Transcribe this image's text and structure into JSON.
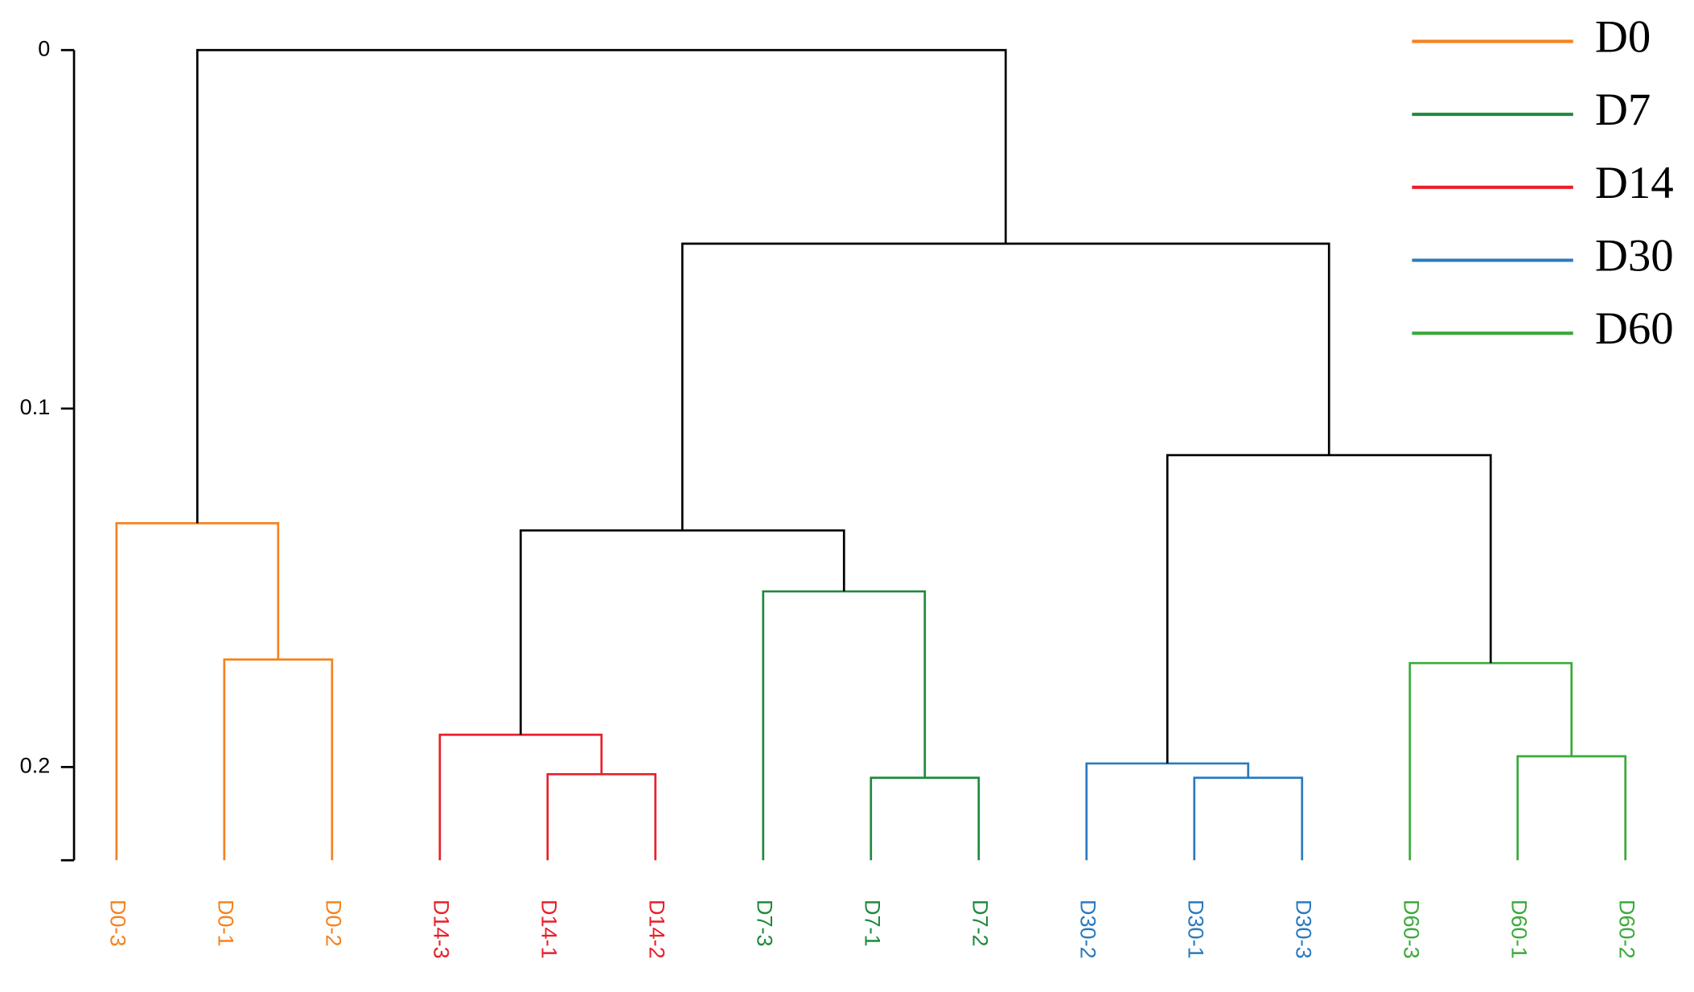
{
  "chart_data": {
    "type": "dendrogram",
    "ylim": [
      0,
      0.226
    ],
    "yticks": [
      0,
      0.1,
      0.2
    ],
    "leaves": [
      {
        "name": "D0-3",
        "color": "#f5821f"
      },
      {
        "name": "D0-1",
        "color": "#f5821f"
      },
      {
        "name": "D0-2",
        "color": "#f5821f"
      },
      {
        "name": "D14-3",
        "color": "#e8202a"
      },
      {
        "name": "D14-1",
        "color": "#e8202a"
      },
      {
        "name": "D14-2",
        "color": "#e8202a"
      },
      {
        "name": "D7-3",
        "color": "#1e8a3c"
      },
      {
        "name": "D7-1",
        "color": "#1e8a3c"
      },
      {
        "name": "D7-2",
        "color": "#1e8a3c"
      },
      {
        "name": "D30-2",
        "color": "#2a7abf"
      },
      {
        "name": "D30-1",
        "color": "#2a7abf"
      },
      {
        "name": "D30-3",
        "color": "#2a7abf"
      },
      {
        "name": "D60-3",
        "color": "#3aaa3a"
      },
      {
        "name": "D60-1",
        "color": "#3aaa3a"
      },
      {
        "name": "D60-2",
        "color": "#3aaa3a"
      }
    ],
    "merges": [
      {
        "left": 1,
        "right": 2,
        "height": 0.17,
        "color": "#f5821f"
      },
      {
        "left": 0,
        "right": 15,
        "height": 0.132,
        "color": "#f5821f"
      },
      {
        "left": 4,
        "right": 5,
        "height": 0.202,
        "color": "#e8202a"
      },
      {
        "left": 3,
        "right": 17,
        "height": 0.191,
        "color": "#e8202a"
      },
      {
        "left": 7,
        "right": 8,
        "height": 0.203,
        "color": "#1e8a3c"
      },
      {
        "left": 6,
        "right": 19,
        "height": 0.151,
        "color": "#1e8a3c"
      },
      {
        "left": 18,
        "right": 20,
        "height": 0.134,
        "color": "#000000"
      },
      {
        "left": 10,
        "right": 11,
        "height": 0.203,
        "color": "#2a7abf"
      },
      {
        "left": 9,
        "right": 22,
        "height": 0.199,
        "color": "#2a7abf"
      },
      {
        "left": 13,
        "right": 14,
        "height": 0.197,
        "color": "#3aaa3a"
      },
      {
        "left": 12,
        "right": 24,
        "height": 0.171,
        "color": "#3aaa3a"
      },
      {
        "left": 23,
        "right": 25,
        "height": 0.113,
        "color": "#000000"
      },
      {
        "left": 21,
        "right": 26,
        "height": 0.054,
        "color": "#000000"
      },
      {
        "left": 16,
        "right": 27,
        "height": 0,
        "color": "#000000"
      }
    ],
    "legend": [
      {
        "name": "D0",
        "color": "#f5821f"
      },
      {
        "name": "D7",
        "color": "#1e8a3c"
      },
      {
        "name": "D14",
        "color": "#e8202a"
      },
      {
        "name": "D30",
        "color": "#2a7abf"
      },
      {
        "name": "D60",
        "color": "#3aaa3a"
      }
    ]
  }
}
